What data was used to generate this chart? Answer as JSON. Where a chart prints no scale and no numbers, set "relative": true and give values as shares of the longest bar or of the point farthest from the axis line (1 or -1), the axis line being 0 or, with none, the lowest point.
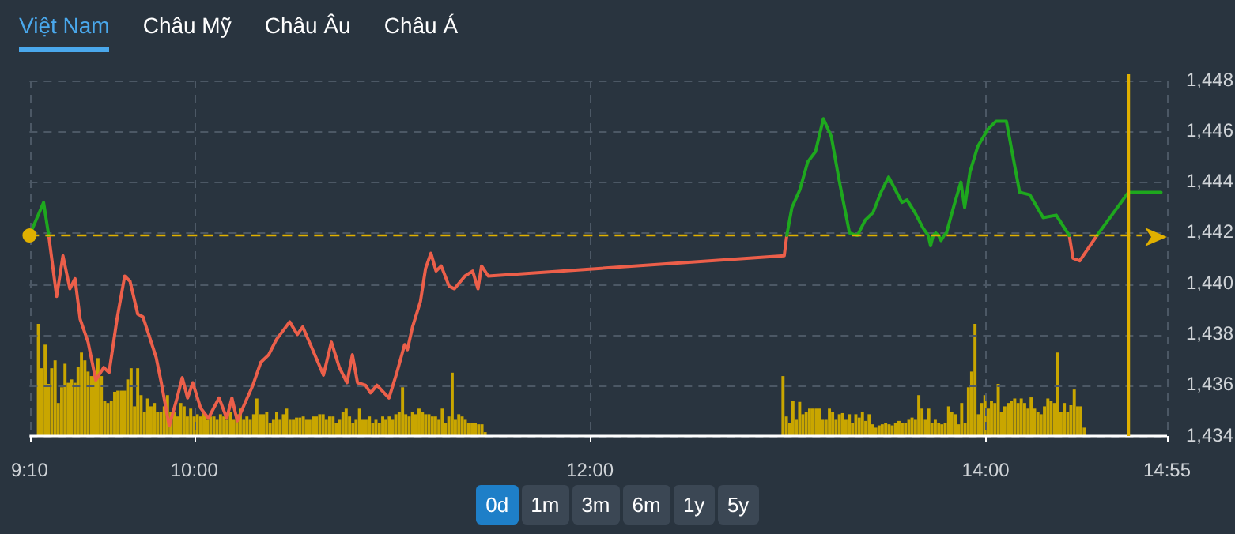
{
  "chart_data": [
    {
      "type": "line",
      "annotations": [
        "Việt Nam",
        "Châu Mỹ",
        "Châu Âu",
        "Châu Á",
        "0d",
        "1m",
        "3m",
        "6m",
        "1y",
        "5y"
      ],
      "xlim": [
        9.167,
        14.917
      ],
      "ylim": [
        1434,
        1448
      ],
      "xticks": [
        {
          "value": 9.167,
          "label": "9:10"
        },
        {
          "value": 10,
          "label": "10:00"
        },
        {
          "value": 12,
          "label": "12:00"
        },
        {
          "value": 14,
          "label": "14:00"
        },
        {
          "value": 14.917,
          "label": "14:55"
        }
      ],
      "yticks": [
        {
          "value": 1434,
          "label": "1,434"
        },
        {
          "value": 1436,
          "label": "1,436"
        },
        {
          "value": 1438,
          "label": "1,438"
        },
        {
          "value": 1440,
          "label": "1,440"
        },
        {
          "value": 1442,
          "label": "1,442"
        },
        {
          "value": 1444,
          "label": "1,444"
        },
        {
          "value": 1446,
          "label": "1,446"
        },
        {
          "value": 1448,
          "label": "1,448"
        }
      ],
      "grid": true,
      "marker": "none",
      "line_style": "solid",
      "ref_lines": [
        {
          "axis": "y",
          "value": 1441.9,
          "color": "#e0b000",
          "line_style": "dashed"
        },
        {
          "axis": "x",
          "value": 14.722,
          "color": "#e0b000",
          "line_style": "solid"
        }
      ],
      "series": [
        {
          "color": "#1ea81e",
          "x": [
            9.167,
            9.238,
            9.264,
            11,
            12.995,
            13.021,
            13.061,
            13.101,
            13.14,
            13.18,
            13.22,
            13.259,
            13.312,
            13.352,
            13.391,
            13.431,
            13.471,
            13.51,
            13.537,
            13.577,
            13.603,
            13.643,
            13.683,
            13.71,
            13.722,
            13.735,
            13.748,
            13.762,
            13.775,
            13.79,
            13.802,
            13.841,
            13.875,
            13.894,
            13.921,
            13.96,
            14.013,
            14.053,
            14.105,
            14.172,
            14.224,
            14.291,
            14.357,
            14.423,
            14.5,
            14.563,
            14.722,
            14.887
          ],
          "values": [
            1441.9,
            1443.2,
            1441.9,
            null,
            1441.9,
            1443.0,
            1443.7,
            1444.8,
            1445.2,
            1446.5,
            1445.8,
            1444.1,
            1442.0,
            1441.9,
            1442.5,
            1442.8,
            1443.6,
            1444.2,
            1443.8,
            1443.2,
            1443.3,
            1442.8,
            1442.2,
            1441.9,
            1441.5,
            1441.9,
            1442.0,
            1441.9,
            1441.7,
            1441.9,
            1442.0,
            1443.1,
            1444.0,
            1443.0,
            1444.4,
            1445.4,
            1446.1,
            1446.4,
            1446.4,
            1443.6,
            1443.5,
            1442.6,
            1442.7,
            1441.9,
            null,
            1441.9,
            1443.6,
            1443.6
          ]
        },
        {
          "color": "#ec5f4a",
          "x": [
            9.264,
            9.304,
            9.336,
            9.371,
            9.397,
            9.423,
            9.463,
            9.502,
            9.542,
            9.569,
            9.609,
            9.648,
            9.675,
            9.714,
            9.74,
            9.807,
            9.833,
            9.873,
            9.913,
            9.939,
            9.966,
            9.992,
            10.032,
            10.071,
            10.125,
            10.164,
            10.19,
            10.217,
            10.256,
            10.296,
            10.336,
            10.376,
            10.415,
            10.482,
            10.521,
            10.548,
            10.587,
            10.653,
            10.693,
            10.733,
            10.772,
            10.799,
            10.825,
            10.865,
            10.891,
            10.923,
            10.984,
            11.024,
            11.063,
            11.077,
            11.103,
            11.143,
            11.169,
            11.196,
            11.222,
            11.248,
            11.288,
            11.315,
            11.368,
            11.407,
            11.434,
            11.452,
            11.486,
            12.982,
            12.995,
            13.5,
            14.423,
            14.442,
            14.476,
            14.563
          ],
          "values": [
            1441.9,
            1439.5,
            1441.1,
            1439.8,
            1440.2,
            1438.6,
            1437.7,
            1436.2,
            1436.7,
            1436.5,
            1438.6,
            1440.3,
            1440.1,
            1438.8,
            1438.7,
            1437.1,
            1436.1,
            1434.4,
            1435.5,
            1436.3,
            1435.5,
            1436.1,
            1435.1,
            1434.7,
            1435.5,
            1434.7,
            1435.5,
            1434.6,
            1435.3,
            1436.0,
            1436.9,
            1437.2,
            1437.8,
            1438.5,
            1438.0,
            1438.3,
            1437.6,
            1436.4,
            1437.7,
            1436.7,
            1436.1,
            1437.2,
            1436.1,
            1436.0,
            1435.7,
            1436.0,
            1435.5,
            1436.5,
            1437.6,
            1437.4,
            1438.3,
            1439.3,
            1440.6,
            1441.2,
            1440.5,
            1440.7,
            1439.9,
            1439.8,
            1440.3,
            1440.5,
            1439.8,
            1440.7,
            1440.3,
            1441.1,
            1441.9,
            null,
            1441.9,
            1441.0,
            1440.9,
            1441.9
          ]
        }
      ]
    },
    {
      "type": "bar",
      "relative": true,
      "color": "#c9a600",
      "xlim": [
        9.167,
        14.917
      ],
      "tick_labels": false,
      "x": [
        9.233,
        9.25,
        9.267,
        9.283,
        9.3,
        9.317,
        9.333,
        9.35,
        9.367,
        9.383,
        9.4,
        9.417,
        9.433,
        9.45,
        9.467,
        9.483,
        9.5,
        9.517,
        9.533,
        9.55,
        9.567,
        9.583,
        9.6,
        9.617,
        9.633,
        9.65,
        9.667,
        9.683,
        9.7,
        9.717,
        9.733,
        9.75,
        9.767,
        9.783,
        9.8,
        9.817,
        9.833,
        9.85,
        9.867,
        9.883,
        9.9,
        9.917,
        9.933,
        9.95,
        9.967,
        9.983,
        10,
        10.017,
        10.033,
        10.05,
        10.067,
        10.083,
        10.1,
        10.117,
        10.133,
        10.15,
        10.167,
        10.183,
        10.2,
        10.217,
        10.233,
        10.25,
        10.267,
        10.283,
        10.3,
        10.317,
        10.333,
        10.35,
        10.367,
        10.383,
        10.4,
        10.417,
        10.433,
        10.45,
        10.467,
        10.483,
        10.5,
        10.517,
        10.533,
        10.55,
        10.567,
        10.583,
        10.6,
        10.617,
        10.633,
        10.65,
        10.667,
        10.683,
        10.7,
        10.717,
        10.733,
        10.75,
        10.767,
        10.783,
        10.8,
        10.817,
        10.833,
        10.85,
        10.867,
        10.883,
        10.9,
        10.917,
        10.933,
        10.95,
        10.967,
        10.983,
        11,
        11.017,
        11.033,
        11.05,
        11.067,
        11.083,
        11.1,
        11.117,
        11.133,
        11.15,
        11.167,
        11.183,
        11.2,
        11.217,
        11.233,
        11.25,
        11.267,
        11.283,
        11.3,
        11.317,
        11.333,
        11.35,
        11.367,
        11.383,
        11.4,
        11.417,
        11.433,
        11.45,
        11.467,
        11.483,
        12.983,
        13,
        13.017,
        13.033,
        13.05,
        13.067,
        13.083,
        13.1,
        13.117,
        13.133,
        13.15,
        13.167,
        13.183,
        13.2,
        13.217,
        13.233,
        13.25,
        13.267,
        13.283,
        13.3,
        13.317,
        13.333,
        13.35,
        13.367,
        13.383,
        13.4,
        13.417,
        13.433,
        13.45,
        13.467,
        13.483,
        13.5,
        13.517,
        13.533,
        13.55,
        13.567,
        13.583,
        13.6,
        13.617,
        13.633,
        13.65,
        13.667,
        13.683,
        13.7,
        13.717,
        13.733,
        13.75,
        13.767,
        13.783,
        13.8,
        13.817,
        13.833,
        13.85,
        13.867,
        13.883,
        13.9,
        13.917,
        13.933,
        13.95,
        13.967,
        13.983,
        14,
        14.017,
        14.033,
        14.05,
        14.067,
        14.083,
        14.1,
        14.117,
        14.133,
        14.15,
        14.167,
        14.183,
        14.2,
        14.217,
        14.233,
        14.25,
        14.267,
        14.283,
        14.3,
        14.317,
        14.333,
        14.35,
        14.367,
        14.383,
        14.4,
        14.417,
        14.433,
        14.45,
        14.467,
        14.483,
        14.5
      ],
      "values": [
        1,
        0.6,
        0.81,
        0.46,
        0.6,
        0.67,
        0.29,
        0.43,
        0.64,
        0.47,
        0.5,
        0.47,
        0.61,
        0.74,
        0.67,
        0.57,
        0.53,
        0.53,
        0.69,
        0.53,
        0.31,
        0.29,
        0.31,
        0.39,
        0.4,
        0.4,
        0.4,
        0.5,
        0.6,
        0.26,
        0.6,
        0.36,
        0.21,
        0.33,
        0.26,
        0.29,
        0.21,
        0.21,
        0.26,
        0.36,
        0.21,
        0.21,
        0.17,
        0.29,
        0.26,
        0.17,
        0.24,
        0.17,
        0.19,
        0.17,
        0.21,
        0.14,
        0.17,
        0.17,
        0.14,
        0.19,
        0.17,
        0.14,
        0.21,
        0.14,
        0.19,
        0.24,
        0.14,
        0.17,
        0.14,
        0.19,
        0.33,
        0.19,
        0.19,
        0.21,
        0.11,
        0.14,
        0.21,
        0.14,
        0.19,
        0.24,
        0.14,
        0.14,
        0.16,
        0.16,
        0.17,
        0.14,
        0.14,
        0.17,
        0.17,
        0.19,
        0.19,
        0.14,
        0.17,
        0.17,
        0.11,
        0.14,
        0.21,
        0.24,
        0.17,
        0.11,
        0.14,
        0.24,
        0.14,
        0.14,
        0.17,
        0.11,
        0.14,
        0.11,
        0.17,
        0.14,
        0.17,
        0.14,
        0.19,
        0.21,
        0.43,
        0.19,
        0.17,
        0.21,
        0.19,
        0.24,
        0.21,
        0.19,
        0.19,
        0.17,
        0.17,
        0.14,
        0.24,
        0.11,
        0.17,
        0.56,
        0.14,
        0.19,
        0.17,
        0.14,
        0.11,
        0.11,
        0.11,
        0.1,
        0.1,
        0.03,
        0.53,
        0.17,
        0.11,
        0.31,
        0.14,
        0.3,
        0.19,
        0.21,
        0.24,
        0.24,
        0.24,
        0.24,
        0.14,
        0.14,
        0.24,
        0.21,
        0.14,
        0.19,
        0.2,
        0.14,
        0.19,
        0.11,
        0.19,
        0.16,
        0.21,
        0.13,
        0.19,
        0.1,
        0.07,
        0.09,
        0.1,
        0.11,
        0.1,
        0.09,
        0.11,
        0.13,
        0.11,
        0.11,
        0.14,
        0.16,
        0.14,
        0.36,
        0.24,
        0.14,
        0.24,
        0.11,
        0.14,
        0.11,
        0.1,
        0.11,
        0.26,
        0.21,
        0.19,
        0.1,
        0.29,
        0.11,
        0.43,
        0.57,
        1,
        0.19,
        0.29,
        0.36,
        0.24,
        0.31,
        0.29,
        0.46,
        0.21,
        0.26,
        0.29,
        0.31,
        0.33,
        0.29,
        0.33,
        0.29,
        0.24,
        0.34,
        0.24,
        0.21,
        0.19,
        0.26,
        0.33,
        0.31,
        0.29,
        0.74,
        0.21,
        0.29,
        0.21,
        0.27,
        0.41,
        0.26,
        0.26,
        0.07
      ]
    }
  ]
}
